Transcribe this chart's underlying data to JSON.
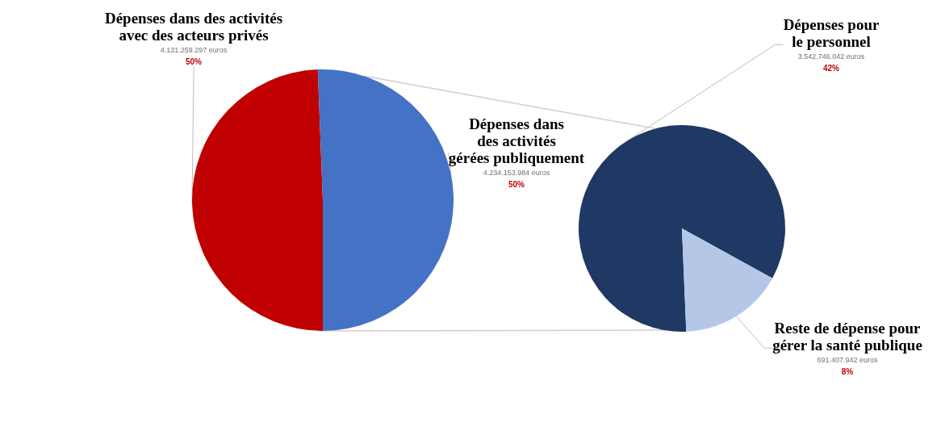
{
  "chart_data": [
    {
      "type": "pie",
      "categories": [
        "Dépenses dans des activités\navec des acteurs privés",
        "Dépenses dans\ndes activités\ngérées publiquement"
      ],
      "values": [
        4131259297,
        4234153984
      ],
      "colors": [
        "#c00000",
        "#4472c4"
      ],
      "value_labels": [
        "4.131.259.297 euros\n50%",
        "4.234.153.984 euros\n50%"
      ]
    },
    {
      "type": "pie",
      "categories": [
        "Dépenses pour\nle personnel",
        "Reste de dépense pour\ngérer la santé publique"
      ],
      "values": [
        3542746042,
        691407942
      ],
      "colors": [
        "#1f3864",
        "#b4c7e7"
      ],
      "value_labels": [
        "3.542.746.042 euros\n42%",
        "691.407.942 euros\n8%"
      ]
    }
  ]
}
